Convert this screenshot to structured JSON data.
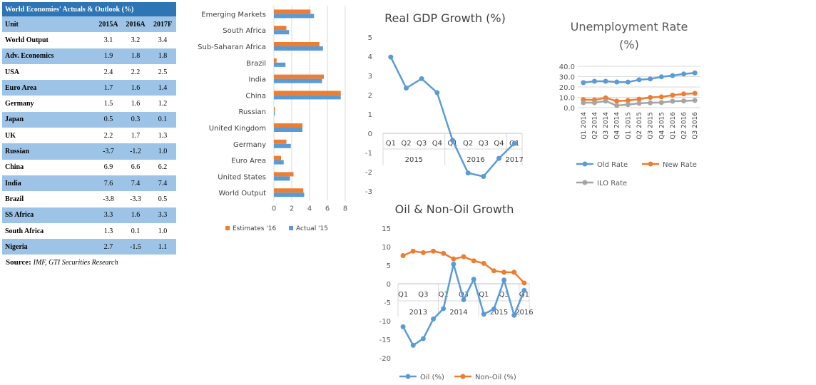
{
  "table": {
    "title": "World Economies' Actuals & Outlook (%)",
    "headers": [
      "Unit",
      "2015A",
      "2016A",
      "2017F"
    ],
    "rows": [
      [
        "World Output",
        "3.1",
        "3.2",
        "3.4"
      ],
      [
        "Adv. Economics",
        "1.9",
        "1.8",
        "1.8"
      ],
      [
        "USA",
        "2.4",
        "2.2",
        "2.5"
      ],
      [
        "Euro Area",
        "1.7",
        "1.6",
        "1.4"
      ],
      [
        "Germany",
        "1.5",
        "1.6",
        "1.2"
      ],
      [
        "Japan",
        "0.5",
        "0.3",
        "0.1"
      ],
      [
        "UK",
        "2.2",
        "1.7",
        "1.3"
      ],
      [
        "Russian",
        "-3.7",
        "-1.2",
        "1.0"
      ],
      [
        "China",
        "6.9",
        "6.6",
        "6.2"
      ],
      [
        "India",
        "7.6",
        "7.4",
        "7.4"
      ],
      [
        "Brazil",
        "-3.8",
        "-3.3",
        "0.5"
      ],
      [
        "SS Africa",
        "3.3",
        "1.6",
        "3.3"
      ],
      [
        "South Africa",
        "1.3",
        "0.1",
        "1.0"
      ],
      [
        "Nigeria",
        "2.7",
        "-1.5",
        "1.1"
      ]
    ],
    "source_label": "Source:",
    "source_text": "IMF, GTI Securities Research"
  },
  "chart_data": [
    {
      "type": "bar",
      "orientation": "horizontal",
      "title": "",
      "categories": [
        "Emerging Markets",
        "South Africa",
        "Sub-Saharan Africa",
        "Brazil",
        "India",
        "China",
        "Russian",
        "United Kingdom",
        "Germany",
        "Euro Area",
        "United States",
        "World Output"
      ],
      "series": [
        {
          "name": "Estimates '16",
          "color": "#ed7d31",
          "values": [
            4.1,
            1.4,
            5.1,
            0.3,
            5.6,
            7.5,
            0.1,
            3.2,
            1.4,
            0.8,
            2.2,
            3.3
          ]
        },
        {
          "name": "Actual  '15",
          "color": "#5b9bd5",
          "values": [
            4.5,
            1.7,
            5.5,
            1.3,
            5.4,
            7.5,
            0.1,
            3.2,
            1.9,
            1.1,
            1.8,
            3.4
          ]
        }
      ],
      "x_ticks": [
        "0",
        "2",
        "4",
        "6",
        "8"
      ],
      "xlim": [
        0,
        8
      ],
      "legend": "bottom",
      "gridlines": true
    },
    {
      "type": "line",
      "title": "Real GDP Growth (%)",
      "quarter_labels": [
        "Q1",
        "Q2",
        "Q3",
        "Q4",
        "Q1",
        "Q2",
        "Q3",
        "Q4",
        "Q1"
      ],
      "year_labels": [
        "2015",
        "2016",
        "2017"
      ],
      "series": [
        {
          "color": "#5b9bd5",
          "values": [
            3.96,
            2.35,
            2.84,
            2.11,
            -0.36,
            -2.06,
            -2.24,
            -1.3,
            -0.52
          ]
        }
      ],
      "y_ticks": [
        "5",
        "4",
        "3",
        "2",
        "1",
        "0",
        "-1",
        "-2",
        "-3"
      ],
      "ylim": [
        -3,
        5
      ]
    },
    {
      "type": "line",
      "title": "Unemployment Rate (%)",
      "title_lines": [
        "Unemployment Rate",
        "(%)"
      ],
      "categories": [
        "Q1 2014",
        "Q2 2014",
        "Q3 2014",
        "Q4 2014",
        "Q1 2015",
        "Q2 2015",
        "Q3 2015",
        "Q4 2015",
        "Q1 2016",
        "Q2 2016",
        "Q3 2016"
      ],
      "series": [
        {
          "name": "Old Rate",
          "color": "#5b9bd5",
          "values": [
            24.2,
            25.5,
            25.5,
            24.8,
            24.7,
            27.0,
            27.8,
            29.8,
            31.0,
            32.6,
            33.6
          ]
        },
        {
          "name": "New Rate",
          "color": "#ed7d31",
          "values": [
            7.8,
            7.5,
            9.5,
            6.4,
            7.0,
            8.2,
            9.9,
            10.4,
            12.1,
            13.3,
            13.9
          ]
        },
        {
          "name": "ILO Rate",
          "color": "#a5a5a5",
          "values": [
            4.8,
            4.8,
            6.4,
            2.0,
            3.0,
            4.2,
            4.7,
            5.0,
            6.2,
            6.5,
            7.0
          ]
        }
      ],
      "y_ticks": [
        "40.0",
        "30.0",
        "20.0",
        "10.0",
        "0.0"
      ],
      "ylim": [
        0,
        40
      ],
      "legend": "bottom"
    },
    {
      "type": "line",
      "title": "Oil & Non-Oil Growth",
      "quarter_labels": [
        "Q1",
        "",
        "Q3",
        "",
        "Q1",
        "",
        "Q3",
        "",
        "Q1",
        "",
        "Q3",
        "",
        "Q1"
      ],
      "year_labels": [
        "2013",
        "2014",
        "2015",
        "2016"
      ],
      "series": [
        {
          "name": "Oil (%)",
          "color": "#5b9bd5",
          "values": [
            -11.6,
            -16.6,
            -14.8,
            -9.5,
            -6.7,
            5.3,
            -4.3,
            1.2,
            -8.2,
            -6.8,
            1.0,
            -8.5,
            -1.8
          ]
        },
        {
          "name": "Non-Oil (%)",
          "color": "#ed7d31",
          "values": [
            7.6,
            8.8,
            8.4,
            8.8,
            8.2,
            6.7,
            7.3,
            6.2,
            5.5,
            3.5,
            3.1,
            3.1,
            0.2
          ]
        }
      ],
      "y_ticks": [
        "15",
        "10",
        "5",
        "0",
        "-5",
        "-10",
        "-15",
        "-20"
      ],
      "ylim": [
        -20,
        15
      ],
      "legend": "bottom"
    }
  ]
}
